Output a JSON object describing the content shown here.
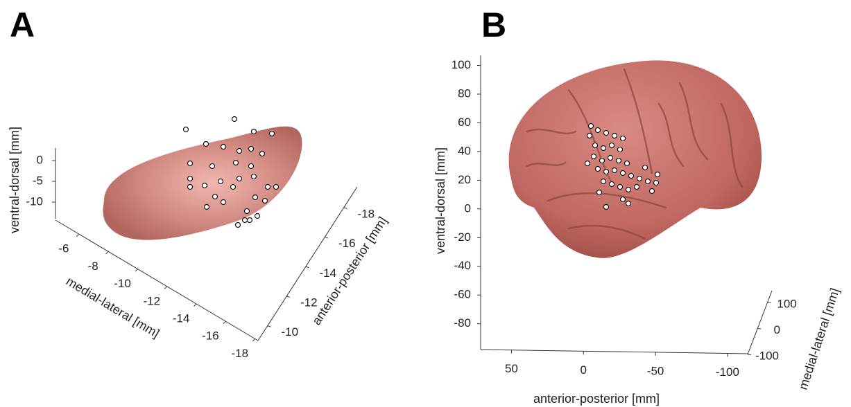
{
  "chart_data": [
    {
      "type": "scatter3d",
      "title": "A",
      "xlabel": "medial-lateral [mm]",
      "ylabel": "anterior-posterior [mm]",
      "zlabel": "ventral-dorsal [mm]",
      "xlim": [
        -4.4,
        -18.2
      ],
      "xticks": [
        -6,
        -8,
        -10,
        -12,
        -14,
        -16,
        -18
      ],
      "ylim": [
        -9,
        -19.4
      ],
      "yticks": [
        -10,
        -12,
        -14,
        -16,
        -18
      ],
      "zlim": [
        -14,
        3
      ],
      "zticks": [
        0,
        -5,
        -10
      ]
    },
    {
      "type": "scatter3d",
      "title": "B",
      "xlabel": "anterior-posterior [mm]",
      "ylabel": "medial-lateral [mm]",
      "zlabel": "ventral-dorsal [mm]",
      "xlim": [
        71.4,
        -114
      ],
      "xticks": [
        50,
        0,
        -50,
        -100
      ],
      "ylim": [
        -100,
        145
      ],
      "yticks": [
        100,
        0,
        -100
      ],
      "zlim": [
        -98,
        107
      ],
      "zticks": [
        100,
        80,
        60,
        40,
        20,
        0,
        -20,
        -40,
        -60,
        -80
      ]
    }
  ]
}
